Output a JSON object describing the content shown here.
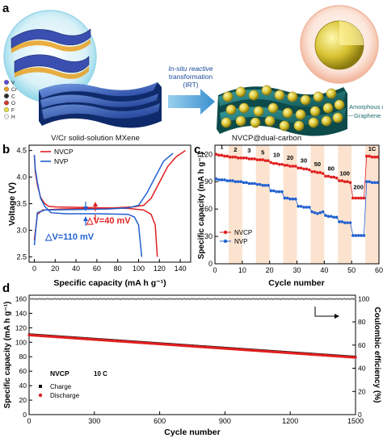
{
  "panel_a": {
    "letter": "a",
    "legend": [
      {
        "symbol": "V",
        "color": "#5a4bd8"
      },
      {
        "symbol": "Cr",
        "color": "#e8a020"
      },
      {
        "symbol": "C",
        "color": "#2a2a2a"
      },
      {
        "symbol": "O",
        "color": "#d03a2a"
      },
      {
        "symbol": "F",
        "color": "#e8e040"
      },
      {
        "symbol": "H",
        "color": "#f0f0f0"
      }
    ],
    "arrow_line1": "In-situ reactive",
    "arrow_line2": "transformation",
    "arrow_line3": "(IRT)",
    "left_caption": "V/Cr solid-solution MXene",
    "right_caption": "NVCP@dual-carbon",
    "label_amorphous": "Amorphous carbon",
    "label_graphene": "Graphene"
  },
  "chart_data": [
    {
      "panel": "b",
      "type": "line",
      "xlabel": "Specific capacity (mA h g⁻¹)",
      "ylabel": "Voltage (V)",
      "xlim": [
        -5,
        150
      ],
      "ylim": [
        2.4,
        4.6
      ],
      "xticks": [
        0,
        20,
        40,
        60,
        80,
        100,
        120,
        140
      ],
      "yticks": [
        2.5,
        3.0,
        3.5,
        4.0,
        4.5
      ],
      "legend_position": "top-left",
      "series": [
        {
          "name": "NVCP",
          "color": "#e02020",
          "charge": [
            [
              0,
              2.82
            ],
            [
              3,
              3.3
            ],
            [
              8,
              3.38
            ],
            [
              25,
              3.4
            ],
            [
              50,
              3.41
            ],
            [
              75,
              3.42
            ],
            [
              95,
              3.44
            ],
            [
              105,
              3.47
            ],
            [
              112,
              3.6
            ],
            [
              120,
              3.9
            ],
            [
              128,
              4.2
            ],
            [
              136,
              4.38
            ],
            [
              145,
              4.5
            ]
          ],
          "discharge": [
            [
              0,
              4.4
            ],
            [
              1,
              4.1
            ],
            [
              3,
              3.85
            ],
            [
              6,
              3.62
            ],
            [
              10,
              3.5
            ],
            [
              14,
              3.45
            ],
            [
              20,
              3.44
            ],
            [
              45,
              3.43
            ],
            [
              70,
              3.42
            ],
            [
              90,
              3.41
            ],
            [
              105,
              3.38
            ],
            [
              112,
              3.3
            ],
            [
              116,
              3.1
            ],
            [
              118,
              2.5
            ]
          ]
        },
        {
          "name": "NVP",
          "color": "#2060d0",
          "charge": [
            [
              0,
              2.72
            ],
            [
              3,
              3.33
            ],
            [
              10,
              3.38
            ],
            [
              40,
              3.39
            ],
            [
              70,
              3.4
            ],
            [
              90,
              3.42
            ],
            [
              100,
              3.47
            ],
            [
              108,
              3.7
            ],
            [
              116,
              4.0
            ],
            [
              124,
              4.3
            ],
            [
              133,
              4.45
            ]
          ],
          "discharge": [
            [
              0,
              4.42
            ],
            [
              1,
              4.15
            ],
            [
              3,
              3.9
            ],
            [
              6,
              3.6
            ],
            [
              10,
              3.45
            ],
            [
              16,
              3.33
            ],
            [
              30,
              3.31
            ],
            [
              60,
              3.31
            ],
            [
              90,
              3.3
            ],
            [
              96,
              3.25
            ],
            [
              100,
              3.1
            ],
            [
              103,
              2.5
            ]
          ]
        }
      ],
      "annotations": [
        {
          "text": "△V=40 mV",
          "color": "#e02020"
        },
        {
          "text": "△V=110 mV",
          "color": "#2060d0"
        }
      ]
    },
    {
      "panel": "c",
      "type": "scatter",
      "xlabel": "Cycle number",
      "ylabel": "Specific capacity (mA h g⁻¹)",
      "xlim": [
        0,
        60
      ],
      "ylim": [
        0,
        130
      ],
      "xticks": [
        0,
        10,
        20,
        30,
        40,
        50,
        60
      ],
      "yticks": [
        0,
        30,
        60,
        90,
        120
      ],
      "legend_position": "bottom-left",
      "rate_labels": [
        "1",
        "2",
        "3",
        "5",
        "10",
        "20",
        "30",
        "50",
        "80",
        "100",
        "200",
        "1C"
      ],
      "series": [
        {
          "name": "NVCP",
          "color": "#e02020",
          "values": [
            120,
            119,
            119,
            118,
            118,
            117,
            117,
            117,
            116,
            116,
            116,
            116,
            115,
            115,
            115,
            114,
            114,
            114,
            113,
            113,
            111,
            110,
            110,
            109,
            109,
            108,
            108,
            107,
            107,
            107,
            105,
            105,
            104,
            104,
            103,
            101,
            101,
            100,
            100,
            99,
            96,
            96,
            95,
            95,
            94,
            91,
            91,
            90,
            90,
            89,
            72,
            72,
            72,
            72,
            72,
            118,
            118,
            117,
            117,
            117
          ]
        },
        {
          "name": "NVP",
          "color": "#2060d0",
          "values": [
            93,
            92,
            92,
            92,
            91,
            91,
            91,
            90,
            90,
            90,
            89,
            89,
            88,
            88,
            88,
            87,
            87,
            86,
            86,
            86,
            80,
            80,
            79,
            79,
            79,
            72,
            72,
            71,
            71,
            71,
            63,
            63,
            62,
            62,
            62,
            57,
            56,
            55,
            56,
            57,
            53,
            52,
            52,
            51,
            51,
            46,
            46,
            45,
            45,
            45,
            31,
            31,
            31,
            31,
            31,
            90,
            90,
            89,
            89,
            89
          ]
        }
      ]
    },
    {
      "panel": "d",
      "type": "scatter",
      "xlabel": "Cycle number",
      "ylabel": "Specific capacity (mA h g⁻¹)",
      "y2label": "Coulombic efficiency (%)",
      "xlim": [
        0,
        1500
      ],
      "ylim": [
        0,
        165
      ],
      "y2lim": [
        0,
        103
      ],
      "xticks": [
        0,
        300,
        600,
        900,
        1200,
        1500
      ],
      "yticks": [
        0,
        20,
        40,
        60,
        80,
        100,
        120,
        140,
        160
      ],
      "y2ticks": [
        0,
        20,
        40,
        60,
        80,
        100
      ],
      "material": "NVCP",
      "rate": "10 C",
      "legend_position": "bottom-left",
      "series": [
        {
          "name": "Charge",
          "color": "#111111",
          "start": 111,
          "end": 80
        },
        {
          "name": "Discharge",
          "color": "#e02020",
          "start": 110,
          "end": 79
        },
        {
          "name": "Coulombic efficiency",
          "color": "#888888",
          "value": 99.8
        }
      ]
    }
  ]
}
